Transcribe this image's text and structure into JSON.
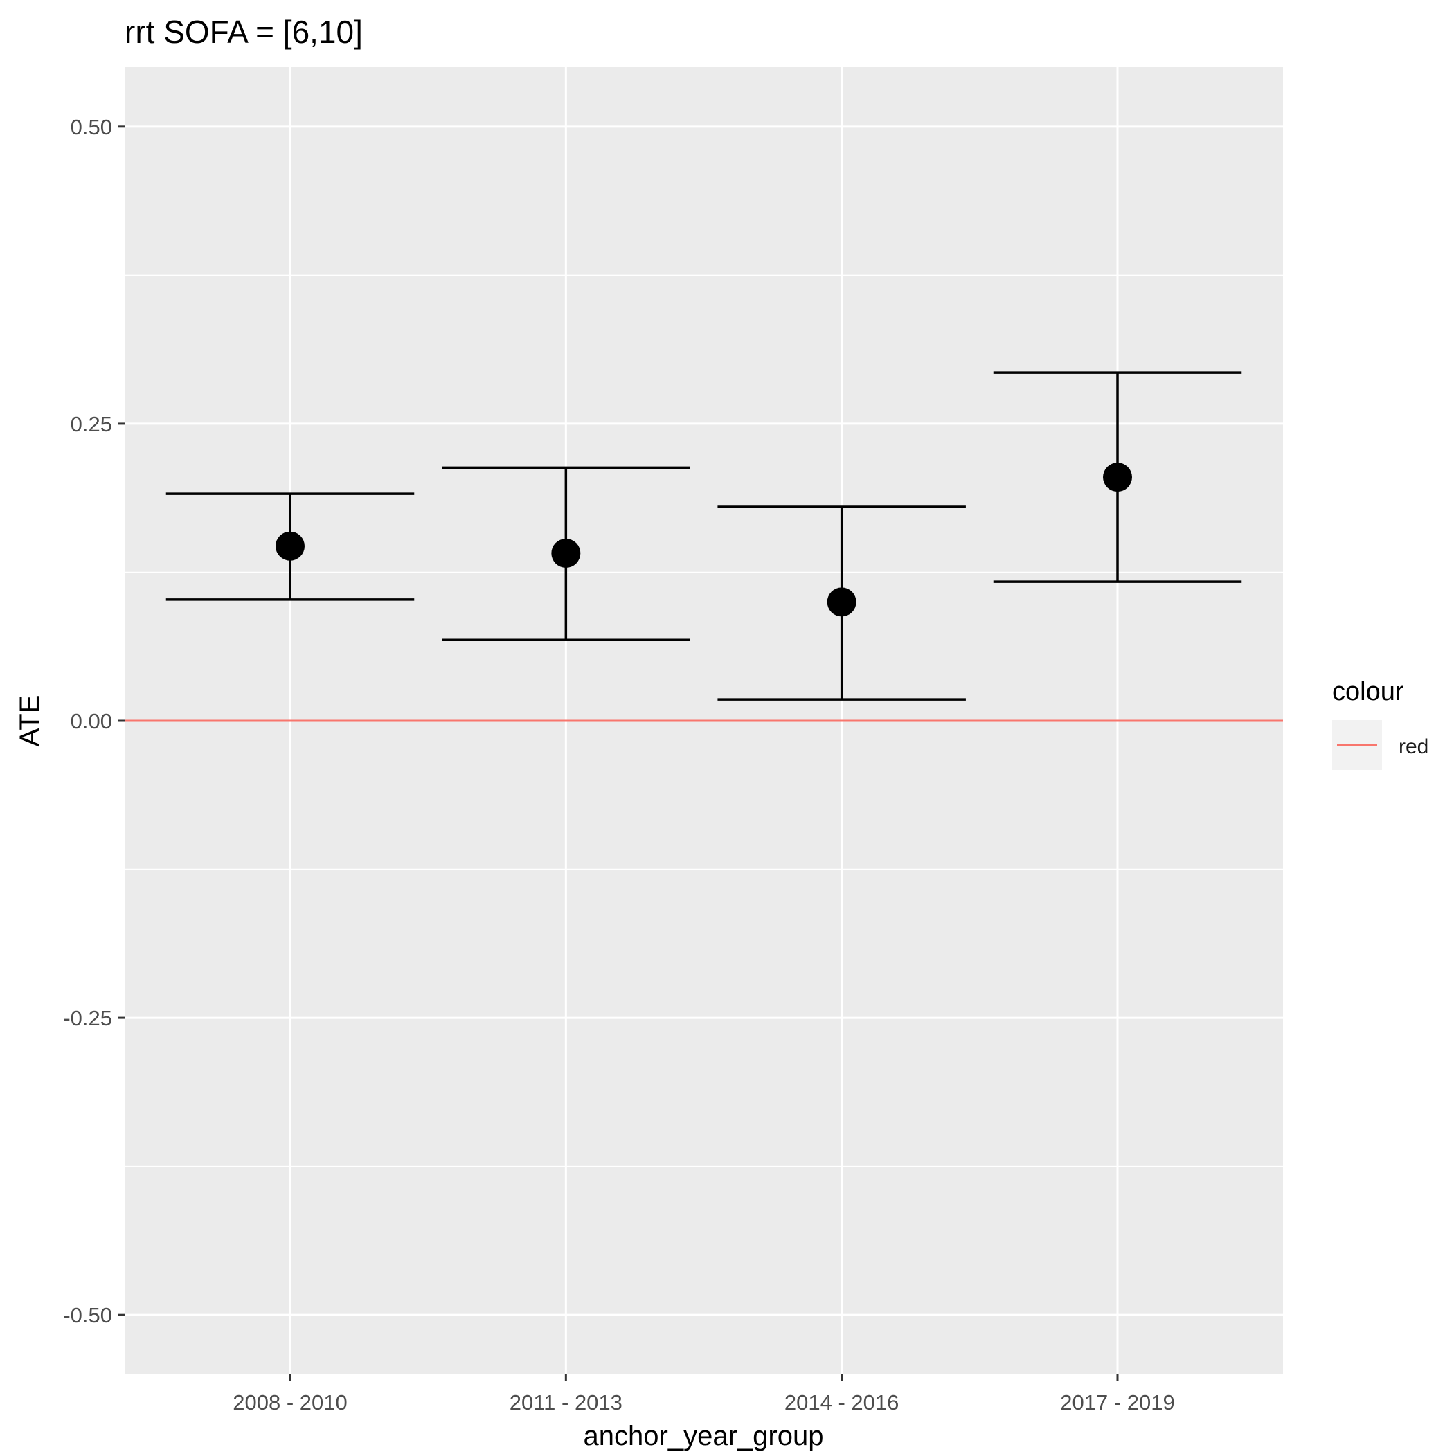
{
  "chart_data": {
    "type": "scatter",
    "title": "rrt SOFA = [6,10]",
    "xlabel": "anchor_year_group",
    "ylabel": "ATE",
    "categories": [
      "2008 - 2010",
      "2011 - 2013",
      "2014 - 2016",
      "2017 - 2019"
    ],
    "series": [
      {
        "estimate": [
          0.147,
          0.141,
          0.1,
          0.205
        ],
        "lower": [
          0.102,
          0.068,
          0.018,
          0.117
        ],
        "upper": [
          0.191,
          0.213,
          0.18,
          0.293
        ]
      }
    ],
    "ylim": [
      -0.55,
      0.55
    ],
    "yticks": [
      0.5,
      0.25,
      0.0,
      -0.25,
      -0.5
    ],
    "ytick_labels": [
      "0.50",
      "0.25",
      "0.00",
      "-0.25",
      "-0.50"
    ],
    "reference_line": {
      "y": 0.0,
      "color": "#F8766D"
    },
    "legend": {
      "title": "colour",
      "entries": [
        {
          "label": "red",
          "color": "#F8766D"
        }
      ],
      "position": "right"
    },
    "grid": true,
    "colors": {
      "panel": "#EBEBEB",
      "grid": "#FFFFFF",
      "points": "#000000",
      "reference": "#F8766D"
    }
  }
}
